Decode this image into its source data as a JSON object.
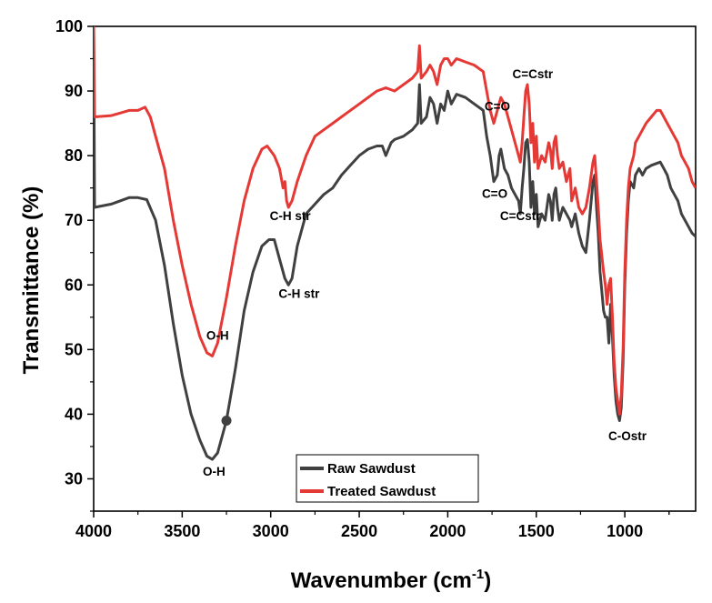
{
  "chart_data": {
    "type": "line",
    "title": "",
    "xlabel": "Wavenumber (cm",
    "xlabel_sup": "-1",
    "xlabel_suffix": ")",
    "ylabel": "Transmittance (%)",
    "xlim": [
      4000,
      600
    ],
    "ylim": [
      25,
      100
    ],
    "x_ticks": [
      "4000",
      "3500",
      "3000",
      "2500",
      "2000",
      "1500",
      "1000"
    ],
    "y_ticks": [
      "30",
      "40",
      "50",
      "60",
      "70",
      "80",
      "90",
      "100"
    ],
    "legend_position": "bottom-center",
    "series": [
      {
        "name": "Raw Sawdust",
        "color": "#404040",
        "points": [
          [
            4000,
            100
          ],
          [
            3995,
            72
          ],
          [
            3900,
            72.5
          ],
          [
            3800,
            73.5
          ],
          [
            3750,
            73.5
          ],
          [
            3700,
            73.2
          ],
          [
            3650,
            70
          ],
          [
            3600,
            63
          ],
          [
            3550,
            54
          ],
          [
            3500,
            46
          ],
          [
            3450,
            40
          ],
          [
            3400,
            36
          ],
          [
            3360,
            33.5
          ],
          [
            3330,
            33
          ],
          [
            3300,
            34
          ],
          [
            3250,
            39
          ],
          [
            3200,
            47
          ],
          [
            3150,
            56
          ],
          [
            3100,
            62
          ],
          [
            3050,
            66
          ],
          [
            3010,
            67
          ],
          [
            2980,
            67
          ],
          [
            2950,
            64
          ],
          [
            2920,
            61
          ],
          [
            2900,
            60
          ],
          [
            2880,
            61
          ],
          [
            2850,
            66
          ],
          [
            2800,
            71
          ],
          [
            2750,
            72.5
          ],
          [
            2700,
            74
          ],
          [
            2650,
            75
          ],
          [
            2600,
            77
          ],
          [
            2550,
            78.5
          ],
          [
            2500,
            80
          ],
          [
            2450,
            81
          ],
          [
            2400,
            81.5
          ],
          [
            2370,
            81.5
          ],
          [
            2350,
            80
          ],
          [
            2320,
            82
          ],
          [
            2300,
            82.5
          ],
          [
            2250,
            83
          ],
          [
            2200,
            84
          ],
          [
            2170,
            85
          ],
          [
            2160,
            91
          ],
          [
            2150,
            85
          ],
          [
            2120,
            86
          ],
          [
            2100,
            89
          ],
          [
            2080,
            88
          ],
          [
            2060,
            85
          ],
          [
            2040,
            88
          ],
          [
            2020,
            87
          ],
          [
            2000,
            90
          ],
          [
            1980,
            88
          ],
          [
            1950,
            89.5
          ],
          [
            1900,
            89
          ],
          [
            1850,
            88
          ],
          [
            1800,
            87
          ],
          [
            1780,
            83
          ],
          [
            1760,
            80
          ],
          [
            1740,
            76
          ],
          [
            1720,
            77
          ],
          [
            1710,
            80
          ],
          [
            1700,
            81
          ],
          [
            1680,
            78
          ],
          [
            1660,
            77
          ],
          [
            1640,
            75
          ],
          [
            1620,
            74
          ],
          [
            1600,
            73
          ],
          [
            1590,
            71
          ],
          [
            1580,
            75
          ],
          [
            1570,
            78
          ],
          [
            1560,
            82
          ],
          [
            1550,
            82.5
          ],
          [
            1540,
            79
          ],
          [
            1530,
            72
          ],
          [
            1520,
            76
          ],
          [
            1510,
            71
          ],
          [
            1500,
            74
          ],
          [
            1490,
            69
          ],
          [
            1470,
            71
          ],
          [
            1450,
            70
          ],
          [
            1430,
            74
          ],
          [
            1420,
            73
          ],
          [
            1410,
            70
          ],
          [
            1400,
            74
          ],
          [
            1390,
            75
          ],
          [
            1380,
            72
          ],
          [
            1370,
            70
          ],
          [
            1350,
            72
          ],
          [
            1330,
            71
          ],
          [
            1310,
            70
          ],
          [
            1300,
            69
          ],
          [
            1280,
            71
          ],
          [
            1260,
            68
          ],
          [
            1240,
            66
          ],
          [
            1220,
            65
          ],
          [
            1200,
            70
          ],
          [
            1180,
            76
          ],
          [
            1170,
            77
          ],
          [
            1160,
            72
          ],
          [
            1150,
            68
          ],
          [
            1140,
            62
          ],
          [
            1120,
            56
          ],
          [
            1110,
            55
          ],
          [
            1100,
            55
          ],
          [
            1090,
            51
          ],
          [
            1080,
            57
          ],
          [
            1070,
            52
          ],
          [
            1060,
            46
          ],
          [
            1050,
            42
          ],
          [
            1040,
            40
          ],
          [
            1030,
            39
          ],
          [
            1020,
            41
          ],
          [
            1010,
            48
          ],
          [
            1000,
            60
          ],
          [
            990,
            68
          ],
          [
            980,
            73
          ],
          [
            970,
            76
          ],
          [
            950,
            75
          ],
          [
            940,
            77
          ],
          [
            920,
            78
          ],
          [
            900,
            77
          ],
          [
            880,
            78
          ],
          [
            850,
            78.5
          ],
          [
            800,
            79
          ],
          [
            780,
            78
          ],
          [
            760,
            77
          ],
          [
            740,
            75
          ],
          [
            720,
            74
          ],
          [
            700,
            73
          ],
          [
            680,
            71
          ],
          [
            660,
            70
          ],
          [
            640,
            69
          ],
          [
            620,
            68
          ],
          [
            600,
            67.5
          ]
        ]
      },
      {
        "name": "Treated Sawdust",
        "color": "#e53935",
        "points": [
          [
            4000,
            100
          ],
          [
            3995,
            86
          ],
          [
            3900,
            86.2
          ],
          [
            3800,
            87
          ],
          [
            3750,
            87
          ],
          [
            3710,
            87.5
          ],
          [
            3680,
            86
          ],
          [
            3650,
            83
          ],
          [
            3600,
            78
          ],
          [
            3550,
            70
          ],
          [
            3500,
            63
          ],
          [
            3450,
            57
          ],
          [
            3400,
            52
          ],
          [
            3360,
            49.5
          ],
          [
            3330,
            49
          ],
          [
            3300,
            51
          ],
          [
            3250,
            58
          ],
          [
            3200,
            66
          ],
          [
            3150,
            73
          ],
          [
            3100,
            78
          ],
          [
            3050,
            81
          ],
          [
            3020,
            81.5
          ],
          [
            2980,
            80
          ],
          [
            2950,
            78
          ],
          [
            2930,
            75
          ],
          [
            2920,
            76
          ],
          [
            2910,
            73
          ],
          [
            2900,
            72
          ],
          [
            2880,
            73
          ],
          [
            2850,
            76
          ],
          [
            2800,
            80
          ],
          [
            2750,
            83
          ],
          [
            2700,
            84
          ],
          [
            2650,
            85
          ],
          [
            2600,
            86
          ],
          [
            2550,
            87
          ],
          [
            2500,
            88
          ],
          [
            2450,
            89
          ],
          [
            2400,
            90
          ],
          [
            2350,
            90.5
          ],
          [
            2300,
            90
          ],
          [
            2250,
            91
          ],
          [
            2200,
            92
          ],
          [
            2170,
            93
          ],
          [
            2160,
            97
          ],
          [
            2150,
            92
          ],
          [
            2120,
            93
          ],
          [
            2100,
            94
          ],
          [
            2080,
            93
          ],
          [
            2060,
            91
          ],
          [
            2040,
            94
          ],
          [
            2020,
            95
          ],
          [
            2000,
            95
          ],
          [
            1980,
            94
          ],
          [
            1950,
            95
          ],
          [
            1900,
            94.5
          ],
          [
            1850,
            94
          ],
          [
            1800,
            93
          ],
          [
            1780,
            90
          ],
          [
            1760,
            87
          ],
          [
            1740,
            85
          ],
          [
            1720,
            87
          ],
          [
            1700,
            89
          ],
          [
            1680,
            88
          ],
          [
            1660,
            86
          ],
          [
            1640,
            84
          ],
          [
            1620,
            82
          ],
          [
            1600,
            80
          ],
          [
            1590,
            79
          ],
          [
            1580,
            82
          ],
          [
            1570,
            86
          ],
          [
            1560,
            90
          ],
          [
            1550,
            91
          ],
          [
            1540,
            88
          ],
          [
            1530,
            82
          ],
          [
            1520,
            85
          ],
          [
            1510,
            79
          ],
          [
            1500,
            83
          ],
          [
            1490,
            78
          ],
          [
            1470,
            80
          ],
          [
            1450,
            79
          ],
          [
            1430,
            82
          ],
          [
            1420,
            81
          ],
          [
            1410,
            78
          ],
          [
            1400,
            82
          ],
          [
            1390,
            83
          ],
          [
            1380,
            80
          ],
          [
            1370,
            78
          ],
          [
            1350,
            79
          ],
          [
            1330,
            76
          ],
          [
            1310,
            78
          ],
          [
            1300,
            73
          ],
          [
            1280,
            75
          ],
          [
            1260,
            72
          ],
          [
            1240,
            71
          ],
          [
            1220,
            72
          ],
          [
            1200,
            75
          ],
          [
            1180,
            79
          ],
          [
            1170,
            80
          ],
          [
            1160,
            76
          ],
          [
            1150,
            72
          ],
          [
            1140,
            67
          ],
          [
            1120,
            62
          ],
          [
            1110,
            60
          ],
          [
            1100,
            57
          ],
          [
            1090,
            60
          ],
          [
            1080,
            61
          ],
          [
            1070,
            55
          ],
          [
            1060,
            48
          ],
          [
            1050,
            44
          ],
          [
            1040,
            42
          ],
          [
            1030,
            40
          ],
          [
            1020,
            43
          ],
          [
            1010,
            50
          ],
          [
            1000,
            62
          ],
          [
            990,
            70
          ],
          [
            980,
            75
          ],
          [
            970,
            78
          ],
          [
            950,
            80
          ],
          [
            940,
            82
          ],
          [
            920,
            83
          ],
          [
            900,
            84
          ],
          [
            880,
            85
          ],
          [
            850,
            86
          ],
          [
            820,
            87
          ],
          [
            800,
            87
          ],
          [
            780,
            86
          ],
          [
            760,
            85
          ],
          [
            740,
            84
          ],
          [
            720,
            83
          ],
          [
            700,
            82
          ],
          [
            680,
            80
          ],
          [
            660,
            79
          ],
          [
            640,
            78
          ],
          [
            620,
            76
          ],
          [
            600,
            75
          ]
        ]
      }
    ],
    "annotations": [
      {
        "text": "O-H",
        "x": 3300,
        "y": 51.5
      },
      {
        "text": "O-H",
        "x": 3320,
        "y": 30.5
      },
      {
        "text": "C-H str",
        "x": 2890,
        "y": 70
      },
      {
        "text": "C-H str",
        "x": 2840,
        "y": 58
      },
      {
        "text": "C=O",
        "x": 1720,
        "y": 87
      },
      {
        "text": "C=O",
        "x": 1735,
        "y": 73.5
      },
      {
        "text": "C=Cstr",
        "x": 1520,
        "y": 92
      },
      {
        "text": "C=Cstr",
        "x": 1590,
        "y": 70
      },
      {
        "text": "C-Ostr",
        "x": 985,
        "y": 36
      }
    ],
    "marker": {
      "x": 3250,
      "y": 39,
      "color": "#404040"
    }
  }
}
